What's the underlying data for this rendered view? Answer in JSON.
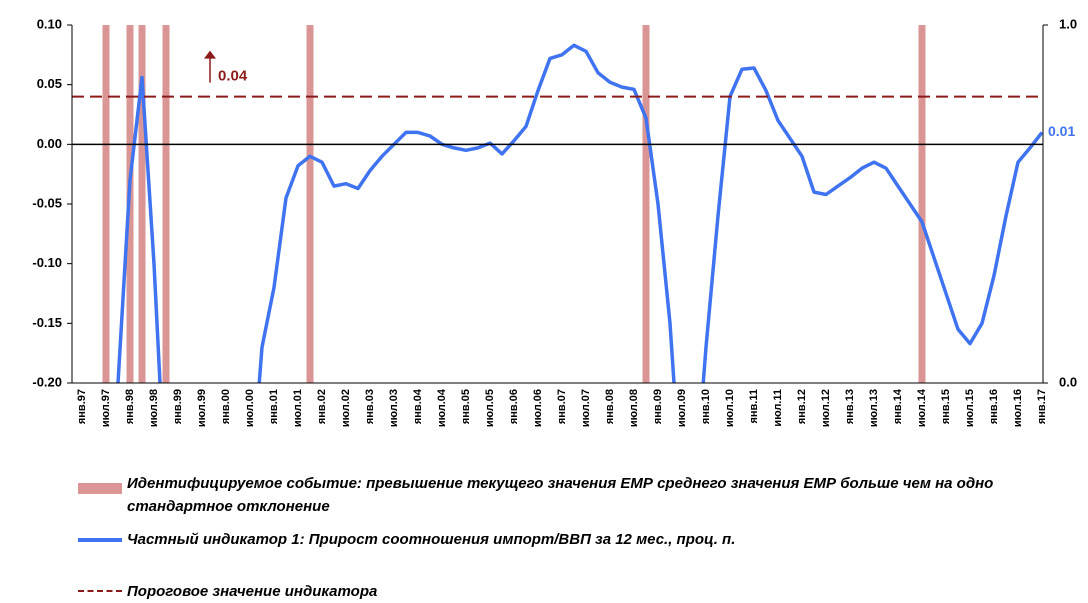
{
  "chart_data": {
    "type": "line",
    "ylim": [
      -0.2,
      0.1
    ],
    "yticks": [
      {
        "value": 0.1,
        "label": "0.10"
      },
      {
        "value": 0.05,
        "label": "0.05"
      },
      {
        "value": 0,
        "label": "0.00"
      },
      {
        "value": -0.05,
        "label": "-0.05"
      },
      {
        "value": -0.1,
        "label": "-0.10"
      },
      {
        "value": -0.15,
        "label": "-0.15"
      },
      {
        "value": -0.2,
        "label": "-0.20"
      }
    ],
    "y2lim": [
      0,
      1
    ],
    "y2ticks": [
      {
        "value": 1,
        "label": "1.0"
      },
      {
        "value": 0,
        "label": "0.0"
      }
    ],
    "categories": [
      "янв.97",
      null,
      "июл.97",
      null,
      "янв.98",
      null,
      "июл.98",
      null,
      "янв.99",
      null,
      "июл.99",
      null,
      "янв.00",
      null,
      "июл.00",
      null,
      "янв.01",
      null,
      "июл.01",
      null,
      "янв.02",
      null,
      "июл.02",
      null,
      "янв.03",
      null,
      "июл.03",
      null,
      "янв.04",
      null,
      "июл.04",
      null,
      "янв.05",
      null,
      "июл.05",
      null,
      "янв.06",
      null,
      "июл.06",
      null,
      "янв.07",
      null,
      "июл.07",
      null,
      "янв.08",
      null,
      "июл.08",
      null,
      "янв.09",
      null,
      "июл.09",
      null,
      "янв.10",
      null,
      "июл.10",
      null,
      "янв.11",
      null,
      "июл.11",
      null,
      "янв.12",
      null,
      "июл.12",
      null,
      "янв.13",
      null,
      "июл.13",
      null,
      "янв.14",
      null,
      "июл.14",
      null,
      "янв.15",
      null,
      "июл.15",
      null,
      "янв.16",
      null,
      "июл.16",
      null,
      "янв.17"
    ],
    "series": [
      {
        "name": "Идентифицируемое событие: превышение текущего значения ЕМР среднего значения ЕМР больше чем на одно стандартное отклонение",
        "type": "bar",
        "axis": "y2",
        "color": "#d99694",
        "values": [
          0,
          0,
          1,
          0,
          1,
          1,
          0,
          1,
          0,
          0,
          0,
          0,
          0,
          0,
          0,
          0,
          0,
          0,
          0,
          1,
          0,
          0,
          0,
          0,
          0,
          0,
          0,
          0,
          0,
          0,
          0,
          0,
          0,
          0,
          0,
          0,
          0,
          0,
          0,
          0,
          0,
          0,
          0,
          0,
          0,
          0,
          0,
          1,
          0,
          0,
          0,
          0,
          0,
          0,
          0,
          0,
          0,
          0,
          0,
          0,
          0,
          0,
          0,
          0,
          0,
          0,
          0,
          0,
          0,
          0,
          1,
          0,
          0,
          0,
          0,
          0,
          0,
          0,
          0,
          0,
          0
        ]
      },
      {
        "name": "Частный индикатор 1: Прирост соотношения импорт/ВВП за 12 мес., проц. п.",
        "type": "line",
        "color": "#3f73f0",
        "values": [
          null,
          null,
          -0.3,
          -0.2,
          -0.03,
          0.056,
          -0.1,
          -0.3,
          null,
          null,
          null,
          null,
          null,
          null,
          -0.3,
          -0.17,
          -0.12,
          -0.045,
          -0.018,
          -0.01,
          -0.015,
          -0.035,
          -0.033,
          -0.037,
          -0.022,
          -0.01,
          0,
          0.01,
          0.01,
          0.007,
          0,
          -0.003,
          -0.005,
          -0.003,
          0.001,
          -0.008,
          0.003,
          0.015,
          0.045,
          0.072,
          0.075,
          0.083,
          0.078,
          0.06,
          0.052,
          0.048,
          0.046,
          0.022,
          -0.05,
          -0.15,
          -0.3,
          -0.3,
          -0.17,
          -0.06,
          0.04,
          0.063,
          0.064,
          0.045,
          0.02,
          0.005,
          -0.01,
          -0.04,
          -0.042,
          -0.035,
          -0.028,
          -0.02,
          -0.015,
          -0.02,
          -0.035,
          -0.05,
          -0.065,
          -0.095,
          -0.125,
          -0.155,
          -0.167,
          -0.15,
          -0.11,
          -0.06,
          -0.015,
          -0.003,
          0.01
        ]
      }
    ],
    "threshold": {
      "name": "Пороговое значение индикатора",
      "value": 0.04,
      "color": "#8b1a1a"
    }
  }
}
